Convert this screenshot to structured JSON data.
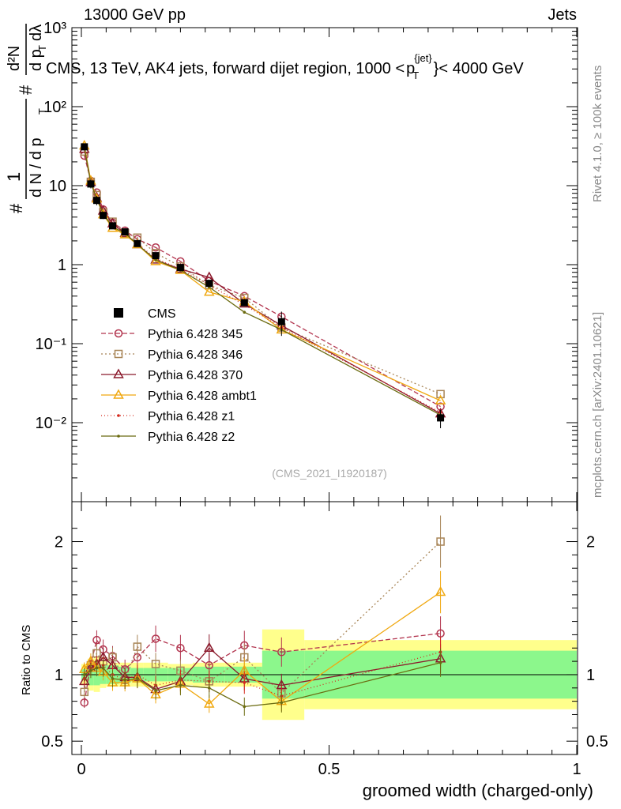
{
  "header": {
    "left": "13000 GeV pp",
    "right": "Jets"
  },
  "side_labels": {
    "rivet": "Rivet 4.1.0, ≥ 100k events",
    "mcplots": "mcplots.cern.ch [arXiv:2401.10621]"
  },
  "chart_data": {
    "type": "line",
    "title": "CMS, 13 TeV, AK4 jets, forward dijet region, 1000 < p_T^{jet} < 4000 GeV",
    "title_parts": {
      "prefix": "CMS, 13 TeV, AK4 jets, forward dijet region, 1000 <",
      "p": "p",
      "T": "T",
      "jet": "{jet}",
      "suffix": "}< 4000 GeV"
    },
    "xlabel": "groomed width (charged-only)",
    "ylabel_parts": [
      "#",
      "1",
      "d N / d p",
      "T",
      "#",
      "d p",
      "T",
      "dλ",
      "d²N"
    ],
    "ylabel": "# 1/(dN/dp_T) # d²N/(dp_T dλ)",
    "ratio_ylabel": "Ratio to CMS",
    "watermark": "(CMS_2021_I1920187)",
    "xlim": [
      0,
      1
    ],
    "ylim": [
      0.001,
      1000
    ],
    "ratio_ylim": [
      0.4,
      2.3
    ],
    "x_ticks": [
      {
        "value": 0,
        "label": "0"
      },
      {
        "value": 0.5,
        "label": "0.5"
      },
      {
        "value": 1,
        "label": "1"
      }
    ],
    "y_ticks": [
      {
        "value": 1000,
        "label": "10³"
      },
      {
        "value": 100,
        "label": "10²"
      },
      {
        "value": 10,
        "label": "10"
      },
      {
        "value": 1,
        "label": "1"
      },
      {
        "value": 0.1,
        "label": "10⁻¹"
      },
      {
        "value": 0.01,
        "label": "10⁻²"
      }
    ],
    "ratio_ticks": [
      {
        "value": 0.5,
        "label": "0.5"
      },
      {
        "value": 1,
        "label": "1"
      },
      {
        "value": 2,
        "label": "2"
      }
    ],
    "x": [
      0.006,
      0.019,
      0.031,
      0.044,
      0.063,
      0.088,
      0.113,
      0.15,
      0.2,
      0.258,
      0.329,
      0.404,
      0.725
    ],
    "data": {
      "name": "CMS",
      "color": "#000000",
      "values": [
        31,
        10.5,
        6.5,
        4.2,
        3.1,
        2.6,
        1.85,
        1.3,
        0.92,
        0.58,
        0.33,
        0.19,
        0.0115
      ],
      "rel_err_inner": [
        0.04,
        0.08,
        0.08,
        0.07,
        0.07,
        0.06,
        0.05,
        0.05,
        0.05,
        0.06,
        0.06,
        0.18,
        0.18
      ],
      "rel_err_outer": [
        0.08,
        0.12,
        0.13,
        0.1,
        0.09,
        0.09,
        0.09,
        0.09,
        0.08,
        0.09,
        0.09,
        0.34,
        0.26
      ],
      "bin_edges": [
        0.0,
        0.0125,
        0.025,
        0.0375,
        0.05,
        0.075,
        0.1,
        0.125,
        0.175,
        0.225,
        0.29,
        0.365,
        0.45,
        1.0
      ]
    },
    "series": [
      {
        "name": "Pythia 6.428 345",
        "color": "#b2344e",
        "dash": "6,3",
        "marker": "circle",
        "values": [
          24,
          11.5,
          8.2,
          5.0,
          3.4,
          2.7,
          2.1,
          1.65,
          1.1,
          0.62,
          0.4,
          0.22,
          0.016
        ],
        "ratio": [
          0.79,
          1.08,
          1.26,
          1.19,
          1.14,
          1.04,
          1.13,
          1.27,
          1.2,
          1.07,
          1.22,
          1.17,
          1.31
        ]
      },
      {
        "name": "Pythia 6.428 346",
        "color": "#a88557",
        "dash": "2,3",
        "marker": "square",
        "values": [
          27,
          11.2,
          7.6,
          4.6,
          3.5,
          2.5,
          2.2,
          1.4,
          0.95,
          0.55,
          0.38,
          0.16,
          0.023
        ],
        "ratio": [
          0.87,
          1.07,
          1.16,
          1.1,
          1.13,
          0.96,
          1.21,
          1.08,
          1.03,
          0.95,
          1.13,
          0.86,
          2.0
        ]
      },
      {
        "name": "Pythia 6.428 370",
        "color": "#8b1a2c",
        "dash": "",
        "marker": "triangle",
        "values": [
          29,
          11.0,
          7.0,
          4.8,
          3.3,
          2.5,
          1.8,
          1.15,
          0.88,
          0.69,
          0.32,
          0.17,
          0.013
        ],
        "ratio": [
          0.95,
          1.05,
          1.08,
          1.13,
          1.07,
          0.98,
          0.98,
          0.89,
          0.95,
          1.2,
          0.97,
          0.92,
          1.12
        ]
      },
      {
        "name": "Pythia 6.428 ambt1",
        "color": "#f0a810",
        "dash": "",
        "marker": "triangle",
        "values": [
          32,
          11.5,
          6.8,
          4.3,
          2.9,
          2.4,
          1.8,
          1.1,
          0.85,
          0.45,
          0.34,
          0.15,
          0.019
        ],
        "ratio": [
          1.04,
          1.1,
          1.05,
          1.02,
          0.94,
          0.94,
          0.97,
          0.85,
          0.93,
          0.78,
          1.03,
          0.8,
          1.62
        ]
      },
      {
        "name": "Pythia 6.428 z1",
        "color": "#d42a1e",
        "dash": "1,3",
        "marker": "dot",
        "values": [
          30,
          11.0,
          7.0,
          4.5,
          3.1,
          2.5,
          1.85,
          1.2,
          0.88,
          0.55,
          0.31,
          0.16,
          0.0135
        ],
        "ratio": [
          0.97,
          1.05,
          1.08,
          1.07,
          1.0,
          0.96,
          1.0,
          0.92,
          0.96,
          0.95,
          0.94,
          0.84,
          1.17
        ]
      },
      {
        "name": "Pythia 6.428 z2",
        "color": "#6b6b10",
        "dash": "",
        "marker": "dot",
        "values": [
          31,
          10.8,
          6.8,
          4.4,
          3.0,
          2.5,
          1.8,
          1.15,
          0.85,
          0.52,
          0.25,
          0.15,
          0.0125
        ],
        "ratio": [
          1.0,
          1.03,
          1.05,
          1.05,
          0.97,
          0.96,
          0.97,
          0.88,
          0.92,
          0.9,
          0.76,
          0.79,
          1.09
        ]
      }
    ]
  }
}
